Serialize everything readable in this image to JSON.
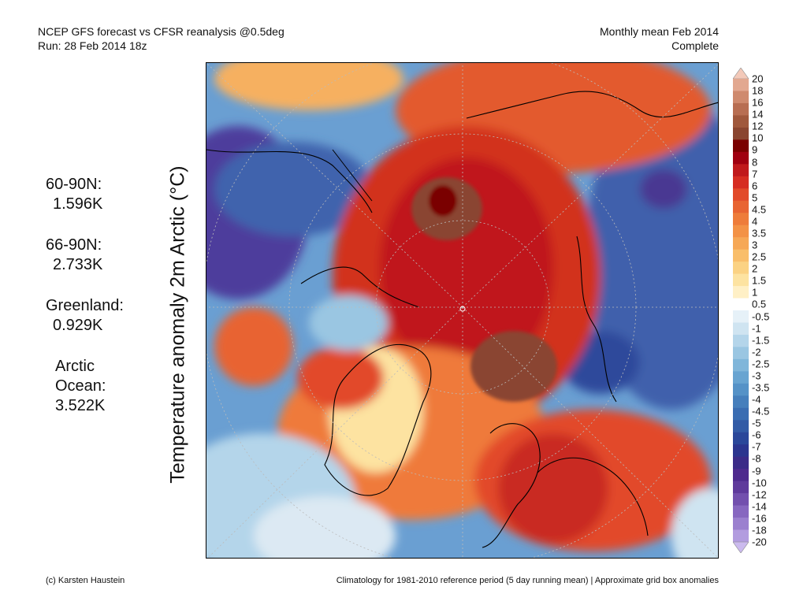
{
  "header": {
    "line1_left": "NCEP GFS forecast vs CFSR reanalysis @0.5deg",
    "line2_left": "Run: 28 Feb 2014 18z",
    "line1_right": "Monthly mean Feb 2014",
    "line2_right": "Complete"
  },
  "stats": [
    {
      "label": "60-90N:",
      "value": "1.596K"
    },
    {
      "label": "66-90N:",
      "value": "2.733K"
    },
    {
      "label": "Greenland:",
      "value": "0.929K"
    },
    {
      "label": "Arctic",
      "label2": "Ocean:",
      "value": "3.522K"
    }
  ],
  "axis_title": "Temperature anomaly 2m Arctic (°C)",
  "colorbar": {
    "labels": [
      "20",
      "18",
      "16",
      "14",
      "12",
      "10",
      "9",
      "8",
      "7",
      "6",
      "5",
      "4.5",
      "4",
      "3.5",
      "3",
      "2.5",
      "2",
      "1.5",
      "1",
      "0.5",
      "-0.5",
      "-1",
      "-1.5",
      "-2",
      "-2.5",
      "-3",
      "-3.5",
      "-4",
      "-4.5",
      "-5",
      "-6",
      "-7",
      "-8",
      "-9",
      "-10",
      "-12",
      "-14",
      "-16",
      "-18",
      "-20"
    ],
    "colors": [
      "#f3c9b9",
      "#e2a890",
      "#cf8a6e",
      "#b86e52",
      "#a0583c",
      "#8a4530",
      "#7a0000",
      "#a00010",
      "#c0191c",
      "#d62d22",
      "#e24a2a",
      "#e86432",
      "#ee7c3a",
      "#f39246",
      "#f6a856",
      "#f9be6a",
      "#fbd283",
      "#fde3a1",
      "#fff0c6",
      "#ffffff",
      "#e6f1f8",
      "#cfe4f1",
      "#b4d5ea",
      "#9ac6e2",
      "#80b6da",
      "#68a4d1",
      "#5592c7",
      "#467fbc",
      "#3a6db2",
      "#325ba6",
      "#2a479a",
      "#2b358f",
      "#3b2b88",
      "#4e2a8e",
      "#5f3a9c",
      "#7350ae",
      "#8767c0",
      "#9b80cf",
      "#b29cdf",
      "#cbbaee"
    ]
  },
  "footer": {
    "left": "(c) Karsten Haustein",
    "right": "Climatology for 1981-2010 reference period (5 day running mean) | Approximate grid box anomalies"
  }
}
